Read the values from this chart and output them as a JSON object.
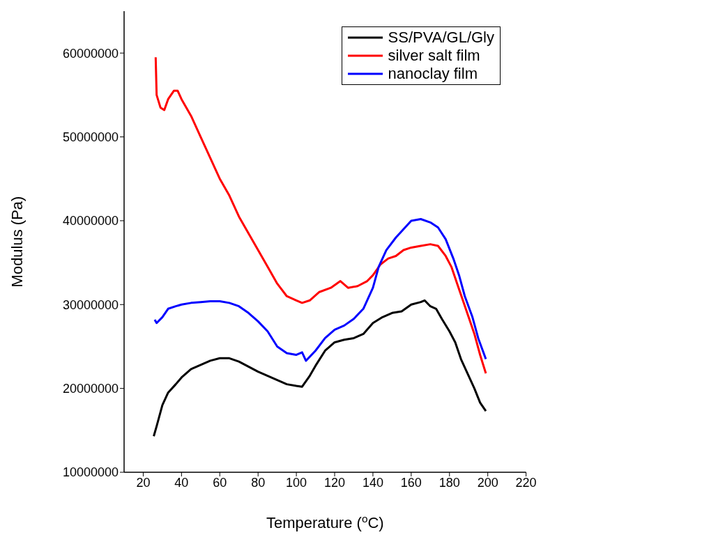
{
  "chart_data": {
    "type": "line",
    "xlabel": "Temperature ($^{o}$C)",
    "ylabel": "Modulus (Pa)",
    "xlim": [
      10,
      220
    ],
    "xticks": [
      20,
      40,
      60,
      80,
      100,
      120,
      140,
      160,
      180,
      200,
      220
    ],
    "ylim": [
      10000000,
      65000000
    ],
    "yticks": [
      10000000,
      20000000,
      30000000,
      40000000,
      50000000,
      60000000
    ],
    "grid": false,
    "legend": "top right",
    "marker": "none",
    "line_style": "solid",
    "series": [
      {
        "name": "SS/PVA/GL/Gly",
        "color": "#000000",
        "x": [
          25.5,
          27,
          30,
          33,
          37,
          40,
          45,
          50,
          55,
          60,
          65,
          70,
          75,
          80,
          85,
          90,
          95,
          100,
          103,
          107,
          110,
          115,
          120,
          125,
          130,
          135,
          140,
          145,
          150,
          155,
          160,
          165,
          167,
          170,
          173,
          176,
          180,
          183,
          186,
          190,
          193,
          196,
          199
        ],
        "values": [
          14300000,
          15500000,
          18000000,
          19500000,
          20500000,
          21300000,
          22300000,
          22800000,
          23300000,
          23600000,
          23600000,
          23200000,
          22600000,
          22000000,
          21500000,
          21000000,
          20500000,
          20300000,
          20200000,
          21500000,
          22700000,
          24500000,
          25500000,
          25800000,
          26000000,
          26500000,
          27800000,
          28500000,
          29000000,
          29200000,
          30000000,
          30300000,
          30500000,
          29800000,
          29500000,
          28300000,
          26800000,
          25500000,
          23500000,
          21500000,
          20000000,
          18300000,
          17300000
        ]
      },
      {
        "name": "silver salt film",
        "color": "#ff0000",
        "x": [
          26.5,
          27,
          29,
          31,
          33,
          36,
          38,
          40,
          45,
          50,
          55,
          60,
          65,
          70,
          75,
          80,
          85,
          90,
          95,
          100,
          103,
          107,
          112,
          118,
          123,
          127,
          132,
          137,
          140,
          144,
          148,
          152,
          156,
          160,
          165,
          170,
          174,
          178,
          181,
          184,
          187,
          190,
          193,
          196,
          199
        ],
        "values": [
          59500000,
          55000000,
          53500000,
          53200000,
          54500000,
          55500000,
          55500000,
          54500000,
          52500000,
          50000000,
          47500000,
          45000000,
          43000000,
          40500000,
          38500000,
          36500000,
          34500000,
          32500000,
          31000000,
          30500000,
          30200000,
          30500000,
          31500000,
          32000000,
          32800000,
          32000000,
          32200000,
          32800000,
          33500000,
          34800000,
          35500000,
          35800000,
          36500000,
          36800000,
          37000000,
          37200000,
          37000000,
          35800000,
          34500000,
          32500000,
          30500000,
          28500000,
          26500000,
          24000000,
          21800000
        ]
      },
      {
        "name": "nanoclay film",
        "color": "#0000ff",
        "x": [
          26,
          27,
          30,
          33,
          37,
          40,
          45,
          50,
          55,
          60,
          65,
          70,
          75,
          80,
          85,
          90,
          95,
          100,
          103,
          105,
          110,
          115,
          120,
          125,
          130,
          135,
          140,
          143,
          147,
          152,
          156,
          160,
          165,
          170,
          174,
          178,
          182,
          185,
          188,
          192,
          195,
          199
        ],
        "values": [
          28200000,
          27800000,
          28500000,
          29500000,
          29800000,
          30000000,
          30200000,
          30300000,
          30400000,
          30400000,
          30200000,
          29800000,
          29000000,
          28000000,
          26800000,
          25000000,
          24200000,
          24000000,
          24300000,
          23300000,
          24500000,
          26000000,
          27000000,
          27500000,
          28300000,
          29500000,
          32000000,
          34500000,
          36500000,
          38000000,
          39000000,
          40000000,
          40200000,
          39800000,
          39200000,
          37800000,
          35500000,
          33500000,
          31000000,
          28500000,
          26000000,
          23500000
        ]
      }
    ]
  }
}
